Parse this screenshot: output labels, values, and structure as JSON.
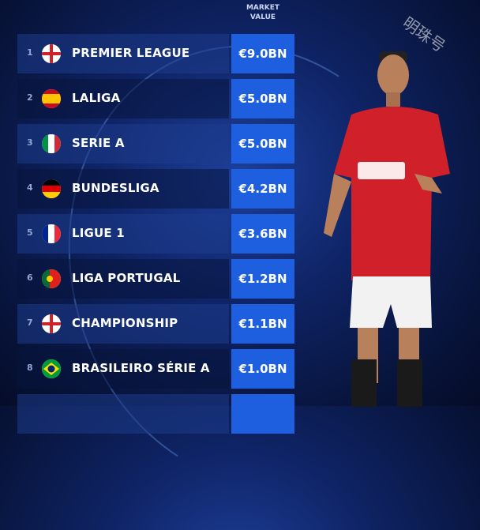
{
  "header": {
    "column_title": "MARKET\nVALUE",
    "column_title_line1": "MARKET",
    "column_title_line2": "VALUE"
  },
  "watermark": "明珠号",
  "rows": [
    {
      "rank": "1",
      "name": "PREMIER LEAGUE",
      "value": "€9.0BN",
      "flag": "england"
    },
    {
      "rank": "2",
      "name": "LALIGA",
      "value": "€5.0BN",
      "flag": "spain"
    },
    {
      "rank": "3",
      "name": "SERIE A",
      "value": "€5.0BN",
      "flag": "italy"
    },
    {
      "rank": "4",
      "name": "BUNDESLIGA",
      "value": "€4.2BN",
      "flag": "germany"
    },
    {
      "rank": "5",
      "name": "LIGUE 1",
      "value": "€3.6BN",
      "flag": "france"
    },
    {
      "rank": "6",
      "name": "LIGA PORTUGAL",
      "value": "€1.2BN",
      "flag": "portugal"
    },
    {
      "rank": "7",
      "name": "CHAMPIONSHIP",
      "value": "€1.1BN",
      "flag": "england"
    },
    {
      "rank": "8",
      "name": "BRASILEIRO SÉRIE A",
      "value": "€1.0BN",
      "flag": "brazil"
    }
  ],
  "colors": {
    "value_box": "#1e5fe0",
    "background": "#0f2466"
  }
}
